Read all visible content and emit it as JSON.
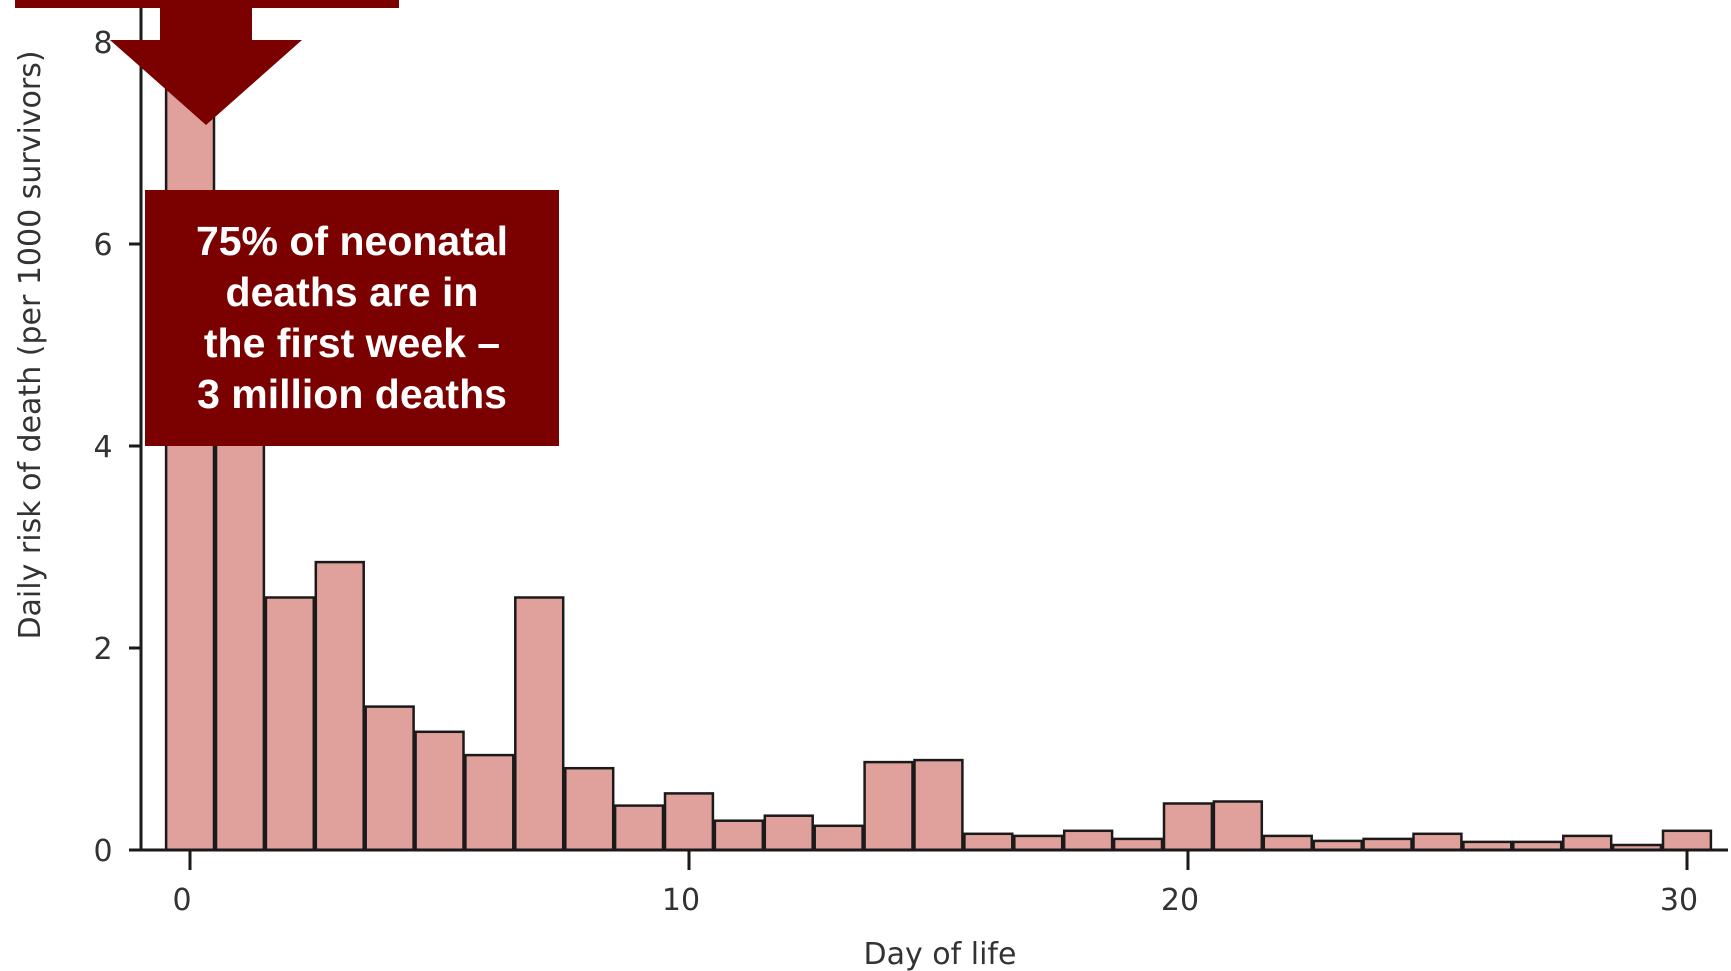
{
  "colors": {
    "bar_fill": "#e0a09b",
    "bar_stroke": "#1a1a1a",
    "axis": "#1a1a1a",
    "callout": "#7b0000",
    "callout_text": "#ffffff"
  },
  "callout": {
    "text": "75% of neonatal\ndeaths are in\nthe first week –\n3 million deaths"
  },
  "chart_data": {
    "type": "bar",
    "title": "",
    "xlabel": "Day of life",
    "ylabel": "Daily risk of death (per 1000 survivors)",
    "xlim": [
      -1,
      31
    ],
    "ylim": [
      0,
      8
    ],
    "x_ticks": [
      0,
      10,
      20,
      30
    ],
    "y_ticks": [
      0,
      2,
      4,
      6,
      8
    ],
    "grid": false,
    "categories": [
      0,
      1,
      2,
      3,
      4,
      5,
      6,
      7,
      8,
      9,
      10,
      11,
      12,
      13,
      14,
      15,
      16,
      17,
      18,
      19,
      20,
      21,
      22,
      23,
      24,
      25,
      26,
      27,
      28,
      29,
      30
    ],
    "values": [
      8.5,
      4.5,
      2.5,
      2.85,
      1.42,
      1.17,
      0.94,
      2.5,
      0.81,
      0.44,
      0.56,
      0.29,
      0.34,
      0.24,
      0.87,
      0.89,
      0.16,
      0.14,
      0.19,
      0.11,
      0.46,
      0.48,
      0.14,
      0.09,
      0.11,
      0.16,
      0.08,
      0.08,
      0.14,
      0.05,
      0.19
    ]
  }
}
